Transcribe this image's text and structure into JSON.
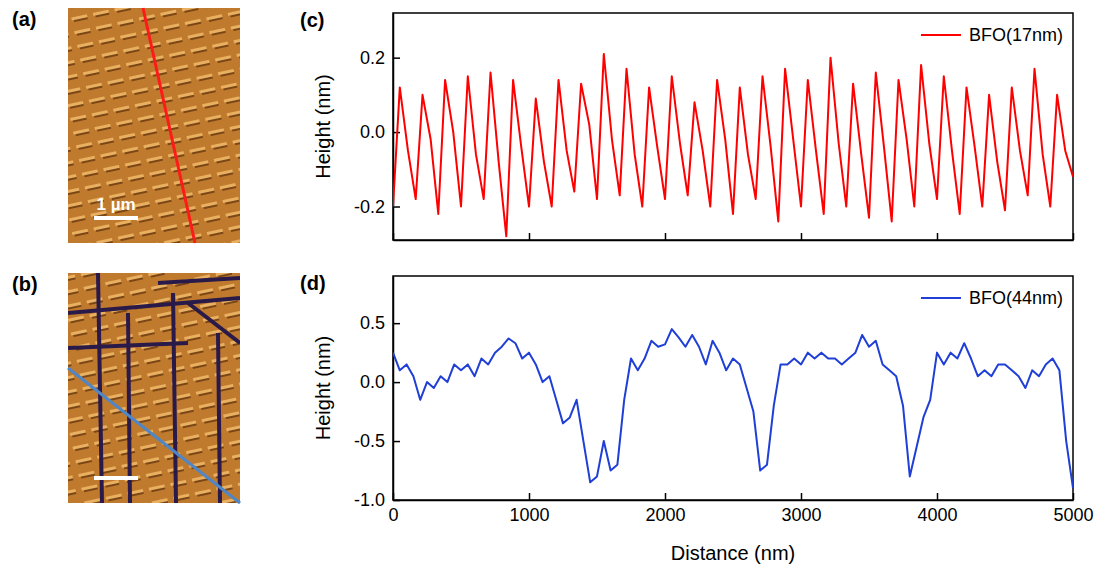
{
  "panels": [
    {
      "label": "(a)",
      "scale_bar": "1 µm"
    },
    {
      "label": "(b)"
    }
  ],
  "chart_data": [
    {
      "type": "line",
      "panel_label": "(c)",
      "ylabel": "Height (nm)",
      "xlim": [
        0,
        5000
      ],
      "xticks": [
        0,
        1000,
        2000,
        3000,
        4000,
        5000
      ],
      "ylim": [
        -0.29,
        0.32
      ],
      "yticks": [
        -0.2,
        {
          "value": 0,
          "label": "0.0"
        },
        0.2
      ],
      "tick_labels": "y",
      "legend": "upper right",
      "x": [
        0,
        50,
        110,
        167,
        217,
        277,
        333,
        383,
        443,
        500,
        550,
        610,
        667,
        717,
        777,
        833,
        883,
        943,
        1000,
        1050,
        1110,
        1167,
        1217,
        1277,
        1333,
        1383,
        1443,
        1500,
        1550,
        1610,
        1667,
        1717,
        1777,
        1833,
        1883,
        1943,
        2000,
        2050,
        2110,
        2167,
        2217,
        2277,
        2333,
        2383,
        2443,
        2500,
        2550,
        2610,
        2667,
        2717,
        2777,
        2833,
        2883,
        2943,
        3000,
        3050,
        3110,
        3167,
        3217,
        3277,
        3333,
        3383,
        3443,
        3500,
        3550,
        3610,
        3667,
        3717,
        3777,
        3833,
        3883,
        3943,
        4000,
        4050,
        4110,
        4167,
        4217,
        4277,
        4333,
        4383,
        4443,
        4500,
        4550,
        4610,
        4667,
        4717,
        4777,
        4833,
        4883,
        4943,
        5000
      ],
      "series": [
        {
          "name": "BFO(17nm)",
          "color": "#ff0000",
          "values": [
            -0.2,
            0.12,
            -0.05,
            -0.18,
            0.1,
            -0.02,
            -0.22,
            0.14,
            0.0,
            -0.2,
            0.15,
            -0.06,
            -0.18,
            0.16,
            -0.08,
            -0.28,
            0.14,
            -0.04,
            -0.2,
            0.09,
            -0.08,
            -0.2,
            0.14,
            -0.05,
            -0.16,
            0.13,
            0.02,
            -0.18,
            0.21,
            -0.02,
            -0.17,
            0.17,
            -0.06,
            -0.2,
            0.12,
            -0.04,
            -0.18,
            0.15,
            -0.03,
            -0.17,
            0.08,
            -0.05,
            -0.2,
            0.14,
            -0.02,
            -0.22,
            0.12,
            -0.06,
            -0.18,
            0.15,
            -0.04,
            -0.24,
            0.17,
            -0.02,
            -0.2,
            0.14,
            -0.05,
            -0.22,
            0.2,
            -0.03,
            -0.2,
            0.13,
            -0.06,
            -0.23,
            0.16,
            -0.04,
            -0.24,
            0.14,
            -0.02,
            -0.2,
            0.18,
            -0.03,
            -0.18,
            0.15,
            -0.05,
            -0.22,
            0.12,
            -0.04,
            -0.2,
            0.1,
            -0.08,
            -0.21,
            0.12,
            -0.05,
            -0.17,
            0.17,
            -0.06,
            -0.2,
            0.1,
            -0.05,
            -0.12
          ]
        }
      ]
    },
    {
      "type": "line",
      "panel_label": "(d)",
      "xlabel": "Distance (nm)",
      "ylabel": "Height (nm)",
      "xlim": [
        0,
        5000
      ],
      "xticks": [
        0,
        1000,
        2000,
        3000,
        4000,
        5000
      ],
      "ylim": [
        -1.0,
        0.9
      ],
      "yticks": [
        {
          "value": -1.0,
          "label": "-1.0"
        },
        -0.5,
        {
          "value": 0,
          "label": "0.0"
        },
        0.5
      ],
      "legend": "upper right",
      "x": [
        0,
        50,
        100,
        150,
        200,
        250,
        300,
        350,
        400,
        450,
        500,
        550,
        600,
        650,
        700,
        750,
        800,
        850,
        900,
        950,
        1000,
        1050,
        1100,
        1150,
        1200,
        1250,
        1300,
        1350,
        1400,
        1450,
        1500,
        1550,
        1600,
        1650,
        1700,
        1750,
        1800,
        1850,
        1900,
        1950,
        2000,
        2050,
        2100,
        2150,
        2200,
        2250,
        2300,
        2350,
        2400,
        2450,
        2500,
        2550,
        2600,
        2650,
        2700,
        2750,
        2800,
        2850,
        2900,
        2950,
        3000,
        3050,
        3100,
        3150,
        3200,
        3250,
        3300,
        3350,
        3400,
        3450,
        3500,
        3550,
        3600,
        3650,
        3700,
        3750,
        3800,
        3850,
        3900,
        3950,
        4000,
        4050,
        4100,
        4150,
        4200,
        4250,
        4300,
        4350,
        4400,
        4450,
        4500,
        4550,
        4600,
        4650,
        4700,
        4750,
        4800,
        4850,
        4900,
        4950,
        5000
      ],
      "series": [
        {
          "name": "BFO(44nm)",
          "color": "#1f3fd6",
          "values": [
            0.25,
            0.1,
            0.15,
            0.05,
            -0.15,
            0.0,
            -0.05,
            0.05,
            0.0,
            0.15,
            0.1,
            0.15,
            0.05,
            0.2,
            0.15,
            0.25,
            0.3,
            0.37,
            0.33,
            0.2,
            0.25,
            0.15,
            0.0,
            0.05,
            -0.15,
            -0.35,
            -0.3,
            -0.15,
            -0.5,
            -0.85,
            -0.8,
            -0.5,
            -0.75,
            -0.7,
            -0.15,
            0.2,
            0.1,
            0.2,
            0.35,
            0.3,
            0.32,
            0.45,
            0.38,
            0.3,
            0.4,
            0.3,
            0.15,
            0.35,
            0.25,
            0.1,
            0.2,
            0.15,
            -0.05,
            -0.25,
            -0.75,
            -0.7,
            -0.2,
            0.15,
            0.15,
            0.2,
            0.15,
            0.25,
            0.2,
            0.25,
            0.2,
            0.2,
            0.15,
            0.2,
            0.25,
            0.4,
            0.3,
            0.35,
            0.15,
            0.1,
            0.05,
            -0.2,
            -0.8,
            -0.55,
            -0.3,
            -0.15,
            0.25,
            0.15,
            0.25,
            0.2,
            0.33,
            0.2,
            0.05,
            0.1,
            0.05,
            0.15,
            0.15,
            0.1,
            0.05,
            -0.05,
            0.1,
            0.05,
            0.15,
            0.2,
            0.1,
            -0.5,
            -0.9
          ]
        }
      ]
    }
  ]
}
